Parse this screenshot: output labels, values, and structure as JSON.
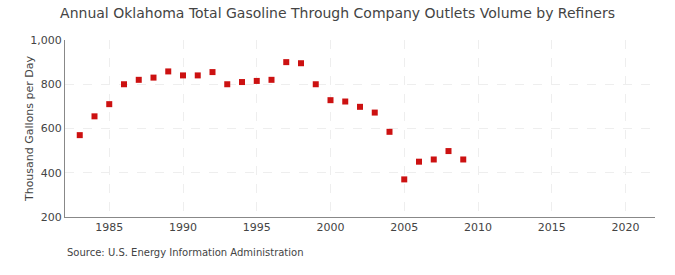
{
  "chart_data": {
    "type": "scatter",
    "title": "Annual Oklahoma Total Gasoline Through Company Outlets Volume by Refiners",
    "ylabel": "Thousand Gallons per Day",
    "source": "Source: U.S. Energy Information Administration",
    "x": [
      1983,
      1984,
      1985,
      1986,
      1987,
      1988,
      1989,
      1990,
      1991,
      1992,
      1993,
      1994,
      1995,
      1996,
      1997,
      1998,
      1999,
      2000,
      2001,
      2002,
      2003,
      2004,
      2005,
      2006,
      2007,
      2008,
      2009
    ],
    "values": [
      570,
      655,
      710,
      800,
      820,
      830,
      858,
      840,
      840,
      855,
      800,
      810,
      815,
      820,
      900,
      895,
      800,
      728,
      722,
      698,
      672,
      585,
      370,
      450,
      460,
      498,
      460
    ],
    "color": "#cc1111",
    "marker": "square",
    "xlim": [
      1982,
      2022
    ],
    "ylim": [
      200,
      1000
    ],
    "xticks": [
      1985,
      1990,
      1995,
      2000,
      2005,
      2010,
      2015,
      2020
    ],
    "yticks": [
      200,
      400,
      600,
      800,
      {
        "value": 1000,
        "label": "1,000"
      }
    ],
    "grid": true
  }
}
